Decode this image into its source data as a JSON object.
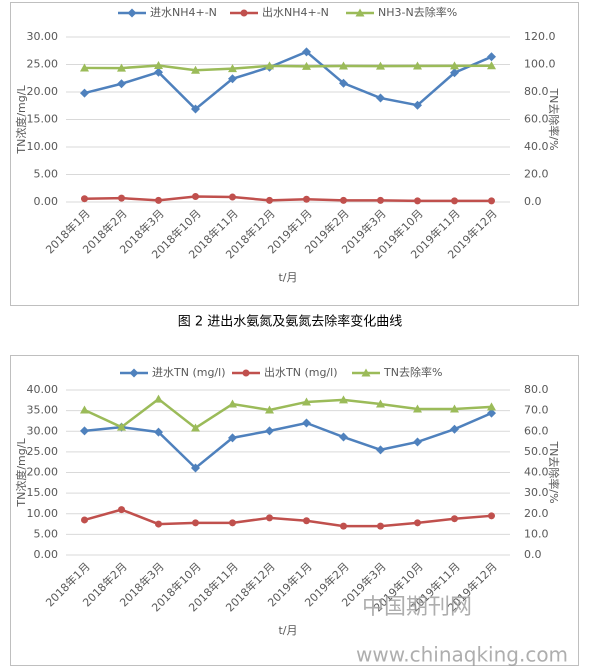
{
  "chart_data": [
    {
      "type": "line",
      "categories": [
        "2018年1月",
        "2018年2月",
        "2018年3月",
        "2018年10月",
        "2018年11月",
        "2018年12月",
        "2019年1月",
        "2019年2月",
        "2019年3月",
        "2019年10月",
        "2019年11月",
        "2019年12月"
      ],
      "series": [
        {
          "name": "进水NH4+-N",
          "color": "#4f81bd",
          "marker": "diamond",
          "values": [
            19.8,
            21.5,
            23.6,
            16.9,
            22.4,
            24.5,
            27.3,
            21.6,
            18.9,
            17.6,
            23.5,
            26.4
          ]
        },
        {
          "name": "出水NH4+-N",
          "color": "#c0504d",
          "marker": "circle",
          "values": [
            0.6,
            0.7,
            0.3,
            1.0,
            0.9,
            0.3,
            0.5,
            0.3,
            0.3,
            0.2,
            0.2,
            0.2
          ]
        },
        {
          "name": "NH3-N去除率%",
          "color": "#9bbb59",
          "marker": "triangle",
          "axis": "y2",
          "values": [
            97.5,
            97.4,
            99.3,
            95.8,
            97.0,
            99.0,
            98.6,
            98.9,
            98.8,
            98.9,
            99.0,
            99.1
          ]
        }
      ],
      "ylabel": "TN浓度/mg/L",
      "y2label": "TN去除率/%",
      "xlabel": "t/月",
      "ylim": [
        0,
        30
      ],
      "yticks": [
        {
          "value": 0,
          "label": "0.00"
        },
        {
          "value": 5,
          "label": "5.00"
        },
        {
          "value": 10,
          "label": "10.00"
        },
        {
          "value": 15,
          "label": "15.00"
        },
        {
          "value": 20,
          "label": "20.00"
        },
        {
          "value": 25,
          "label": "25.00"
        },
        {
          "value": 30,
          "label": "30.00"
        }
      ],
      "y2lim": [
        0,
        120
      ],
      "y2ticks": [
        {
          "value": 0,
          "label": "0.0"
        },
        {
          "value": 20,
          "label": "20.0"
        },
        {
          "value": 40,
          "label": "40.0"
        },
        {
          "value": 60,
          "label": "60.0"
        },
        {
          "value": 80,
          "label": "80.0"
        },
        {
          "value": 100,
          "label": "100.0"
        },
        {
          "value": 120,
          "label": "120.0"
        }
      ],
      "grid": true,
      "legend": "top"
    },
    {
      "type": "line",
      "categories": [
        "2018年1月",
        "2018年2月",
        "2018年3月",
        "2018年10月",
        "2018年11月",
        "2018年12月",
        "2019年1月",
        "2019年2月",
        "2019年3月",
        "2019年10月",
        "2019年11月",
        "2019年12月"
      ],
      "series": [
        {
          "name": "进水TN (mg/l)",
          "color": "#4f81bd",
          "marker": "diamond",
          "values": [
            30.1,
            31.0,
            29.8,
            21.1,
            28.4,
            30.1,
            32.0,
            28.6,
            25.5,
            27.4,
            30.5,
            34.4
          ]
        },
        {
          "name": "出水TN (mg/l)",
          "color": "#c0504d",
          "marker": "circle",
          "values": [
            8.5,
            11.0,
            7.5,
            7.8,
            7.8,
            9.0,
            8.3,
            7.0,
            7.0,
            7.8,
            8.8,
            9.5
          ]
        },
        {
          "name": "TN去除率%",
          "color": "#9bbb59",
          "marker": "triangle",
          "axis": "y2",
          "values": [
            70.3,
            62.0,
            75.6,
            61.6,
            73.2,
            70.3,
            74.2,
            75.2,
            73.2,
            70.8,
            70.8,
            71.8
          ]
        }
      ],
      "ylabel": "TN浓度/mg/L",
      "y2label": "TN去除率/%",
      "xlabel": "t/月",
      "ylim": [
        0,
        40
      ],
      "yticks": [
        {
          "value": 0,
          "label": "0.00"
        },
        {
          "value": 5,
          "label": "5.00"
        },
        {
          "value": 10,
          "label": "10.00"
        },
        {
          "value": 15,
          "label": "15.00"
        },
        {
          "value": 20,
          "label": "20.00"
        },
        {
          "value": 25,
          "label": "25.00"
        },
        {
          "value": 30,
          "label": "30.00"
        },
        {
          "value": 35,
          "label": "35.00"
        },
        {
          "value": 40,
          "label": "40.00"
        }
      ],
      "y2lim": [
        0,
        80
      ],
      "y2ticks": [
        {
          "value": 0,
          "label": "0.0"
        },
        {
          "value": 10,
          "label": "10.0"
        },
        {
          "value": 20,
          "label": "20.0"
        },
        {
          "value": 30,
          "label": "30.0"
        },
        {
          "value": 40,
          "label": "40.0"
        },
        {
          "value": 50,
          "label": "50.0"
        },
        {
          "value": 60,
          "label": "60.0"
        },
        {
          "value": 70,
          "label": "70.0"
        },
        {
          "value": 80,
          "label": "80.0"
        }
      ],
      "grid": true,
      "legend": "top"
    }
  ],
  "caption": "图 2 进出水氨氮及氨氮去除率变化曲线",
  "watermark": [
    "中国期刊网",
    "www.chinaqking.com"
  ]
}
